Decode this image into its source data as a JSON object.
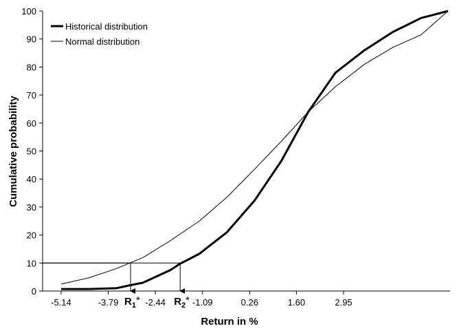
{
  "chart_data": {
    "type": "line",
    "x_label": "Return in %",
    "y_label": "Cumulative probability",
    "xlim": [
      -5.67,
      6.0
    ],
    "ylim": [
      0,
      100
    ],
    "xticks": [
      -5.14,
      -3.79,
      -2.44,
      -1.09,
      0.26,
      {
        "value": 1.6,
        "label": "1.60"
      },
      2.95
    ],
    "yticks": [
      0,
      10,
      20,
      30,
      40,
      50,
      60,
      70,
      80,
      90,
      100
    ],
    "legend": "top-left",
    "series": [
      {
        "name": "Historical distribution",
        "color": "#000000",
        "line_width": 3,
        "x": [
          -5.14,
          -4.35,
          -3.56,
          -3.19,
          -2.79,
          -2.01,
          -1.74,
          -1.18,
          -0.39,
          0.4,
          1.17,
          1.94,
          2.72,
          3.55,
          4.36,
          5.17,
          5.94
        ],
        "values": [
          0.7,
          0.7,
          1.0,
          2.0,
          3.0,
          7.5,
          9.7,
          13.3,
          21,
          32.3,
          46.5,
          64,
          78,
          86,
          92.5,
          97.5,
          100
        ]
      },
      {
        "name": "Normal distribution",
        "color": "#000000",
        "line_width": 1,
        "x": [
          -5.14,
          -4.35,
          -3.56,
          -2.79,
          -2.01,
          -1.18,
          -0.39,
          0.4,
          1.17,
          1.94,
          2.72,
          3.55,
          4.36,
          5.17,
          5.94
        ],
        "values": [
          2.5,
          4.7,
          8,
          12,
          18,
          25,
          33.5,
          43.5,
          53.5,
          64,
          73,
          81,
          87,
          91.5,
          100
        ]
      }
    ],
    "annotations": [
      {
        "label": "R",
        "subscript": "1",
        "suffix": "*",
        "x": -3.15,
        "y": 10
      },
      {
        "label": "R",
        "subscript": "2",
        "suffix": "*",
        "x": -1.73,
        "y": 10
      }
    ]
  }
}
